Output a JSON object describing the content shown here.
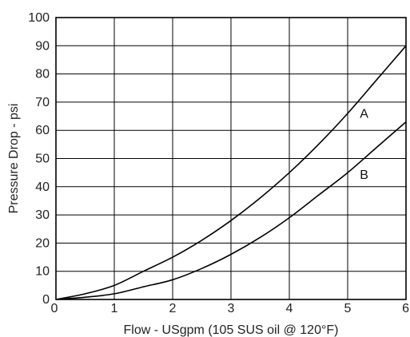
{
  "chart_data": {
    "type": "line",
    "xlabel": "Flow - USgpm (105 SUS oil @ 120°F)",
    "ylabel": "Pressure Drop - psi",
    "xlim": [
      0,
      6
    ],
    "ylim": [
      0,
      100
    ],
    "x_ticks": [
      "0",
      "1",
      "2",
      "3",
      "4",
      "5",
      "6"
    ],
    "y_ticks": [
      "0",
      "10",
      "20",
      "30",
      "40",
      "50",
      "60",
      "70",
      "80",
      "90",
      "100"
    ],
    "grid": true,
    "series": [
      {
        "name": "A",
        "x": [
          0,
          0.5,
          1,
          1.5,
          2,
          2.5,
          3,
          3.5,
          4,
          4.5,
          5,
          5.5,
          6
        ],
        "y": [
          0,
          2,
          5,
          10,
          15,
          21,
          28,
          36,
          45,
          55,
          66,
          78,
          90
        ]
      },
      {
        "name": "B",
        "x": [
          0,
          0.5,
          1,
          1.5,
          2,
          2.5,
          3,
          3.5,
          4,
          4.5,
          5,
          5.5,
          6
        ],
        "y": [
          0,
          0.8,
          2,
          4.5,
          7,
          11,
          16,
          22,
          29,
          37,
          45,
          54,
          63
        ]
      }
    ]
  }
}
